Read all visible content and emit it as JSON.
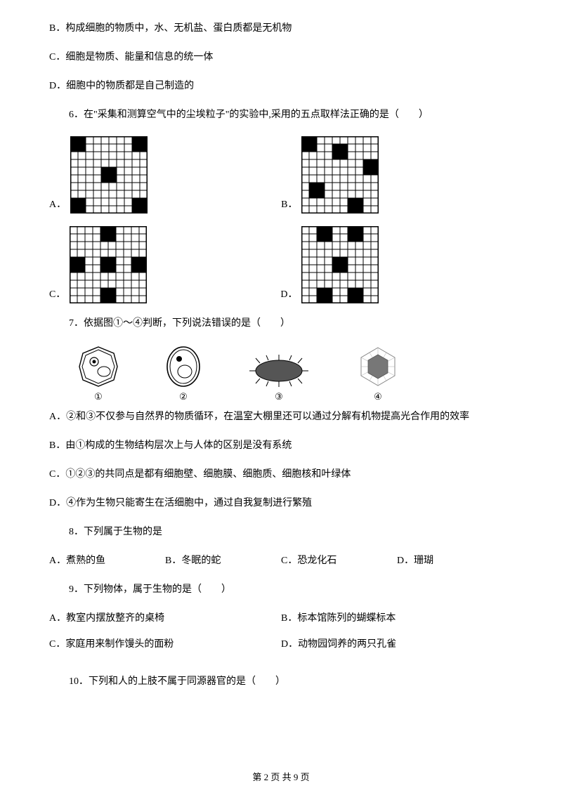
{
  "q5": {
    "optB": "B．构成细胞的物质中，水、无机盐、蛋白质都是无机物",
    "optC": "C．细胞是物质、能量和信息的统一体",
    "optD": "D．细胞中的物质都是自己制造的"
  },
  "q6": {
    "stem": "6．在\"采集和测算空气中的尘埃粒子\"的实验中,采用的五点取样法正确的是（　　）",
    "labels": [
      "A．",
      "B．",
      "C．",
      "D．"
    ],
    "gridSize": 10,
    "cellPx": 11,
    "lineColor": "#000000",
    "fillColor": "#000000",
    "optionA_cells": [
      [
        0,
        0
      ],
      [
        0,
        1
      ],
      [
        1,
        0
      ],
      [
        1,
        1
      ],
      [
        0,
        8
      ],
      [
        0,
        9
      ],
      [
        1,
        8
      ],
      [
        1,
        9
      ],
      [
        4,
        4
      ],
      [
        4,
        5
      ],
      [
        5,
        4
      ],
      [
        5,
        5
      ],
      [
        8,
        0
      ],
      [
        8,
        1
      ],
      [
        9,
        0
      ],
      [
        9,
        1
      ],
      [
        8,
        8
      ],
      [
        8,
        9
      ],
      [
        9,
        8
      ],
      [
        9,
        9
      ]
    ],
    "optionB_cells": [
      [
        0,
        0
      ],
      [
        0,
        1
      ],
      [
        1,
        0
      ],
      [
        1,
        1
      ],
      [
        1,
        4
      ],
      [
        1,
        5
      ],
      [
        2,
        4
      ],
      [
        2,
        5
      ],
      [
        3,
        8
      ],
      [
        3,
        9
      ],
      [
        4,
        8
      ],
      [
        4,
        9
      ],
      [
        6,
        1
      ],
      [
        6,
        2
      ],
      [
        7,
        1
      ],
      [
        7,
        2
      ],
      [
        8,
        6
      ],
      [
        8,
        7
      ],
      [
        9,
        6
      ],
      [
        9,
        7
      ]
    ],
    "optionC_cells": [
      [
        0,
        4
      ],
      [
        0,
        5
      ],
      [
        1,
        4
      ],
      [
        1,
        5
      ],
      [
        4,
        0
      ],
      [
        4,
        1
      ],
      [
        5,
        0
      ],
      [
        5,
        1
      ],
      [
        4,
        4
      ],
      [
        4,
        5
      ],
      [
        5,
        4
      ],
      [
        5,
        5
      ],
      [
        4,
        8
      ],
      [
        4,
        9
      ],
      [
        5,
        8
      ],
      [
        5,
        9
      ],
      [
        8,
        4
      ],
      [
        8,
        5
      ],
      [
        9,
        4
      ],
      [
        9,
        5
      ]
    ],
    "optionD_cells": [
      [
        0,
        2
      ],
      [
        0,
        3
      ],
      [
        1,
        2
      ],
      [
        1,
        3
      ],
      [
        0,
        6
      ],
      [
        0,
        7
      ],
      [
        1,
        6
      ],
      [
        1,
        7
      ],
      [
        4,
        4
      ],
      [
        4,
        5
      ],
      [
        5,
        4
      ],
      [
        5,
        5
      ],
      [
        8,
        2
      ],
      [
        8,
        3
      ],
      [
        9,
        2
      ],
      [
        9,
        3
      ],
      [
        8,
        6
      ],
      [
        8,
        7
      ],
      [
        9,
        6
      ],
      [
        9,
        7
      ]
    ]
  },
  "q7": {
    "stem": "7．依据图①～④判断，下列说法错误的是（　　）",
    "labels": [
      "①",
      "②",
      "③",
      "④"
    ],
    "optA": "A．②和③不仅参与自然界的物质循环，在温室大棚里还可以通过分解有机物提高光合作用的效率",
    "optB": "B．由①构成的生物结构层次上与人体的区别是没有系统",
    "optC": "C．①②③的共同点是都有细胞壁、细胞膜、细胞质、细胞核和叶绿体",
    "optD": "D．④作为生物只能寄生在活细胞中，通过自我复制进行繁殖"
  },
  "q8": {
    "stem": "8．下列属于生物的是",
    "optA": "A．煮熟的鱼",
    "optB": "B．冬眠的蛇",
    "optC": "C．恐龙化石",
    "optD": "D．珊瑚"
  },
  "q9": {
    "stem": "9．下列物体，属于生物的是（　　）",
    "optA": "A．教室内摆放整齐的桌椅",
    "optB": "B．标本馆陈列的蝴蝶标本",
    "optC": "C．家庭用来制作馒头的面粉",
    "optD": "D．动物园饲养的两只孔雀"
  },
  "q10": {
    "stem": "10．下列和人的上肢不属于同源器官的是（　　）"
  },
  "footer": "第 2 页 共 9 页"
}
